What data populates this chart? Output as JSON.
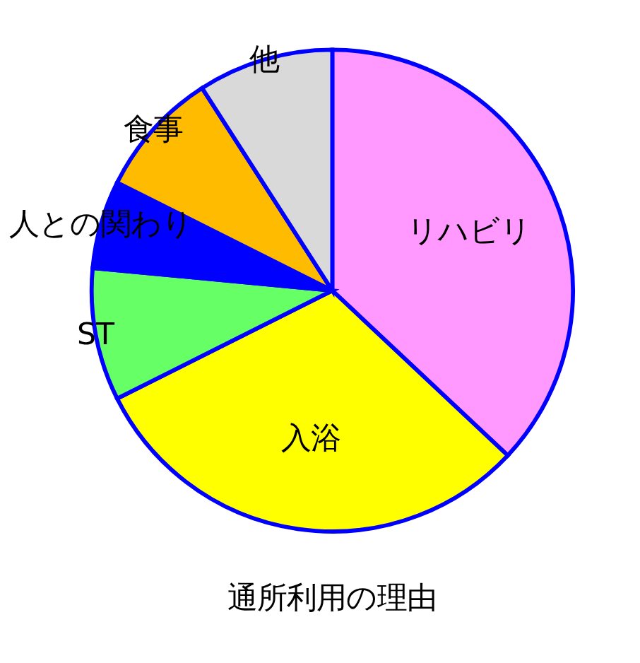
{
  "chart_data": {
    "type": "pie",
    "title": "通所利用の理由",
    "categories": [
      "リハビリ",
      "入浴",
      "ST",
      "人との関わり",
      "食事",
      "他"
    ],
    "values": [
      37,
      30.6,
      8.9,
      5.9,
      8.5,
      9.1
    ],
    "colors": [
      "#ff99ff",
      "#ffff00",
      "#66ff66",
      "#0000ff",
      "#ffbb00",
      "#d9d9d9"
    ],
    "legend": false
  }
}
